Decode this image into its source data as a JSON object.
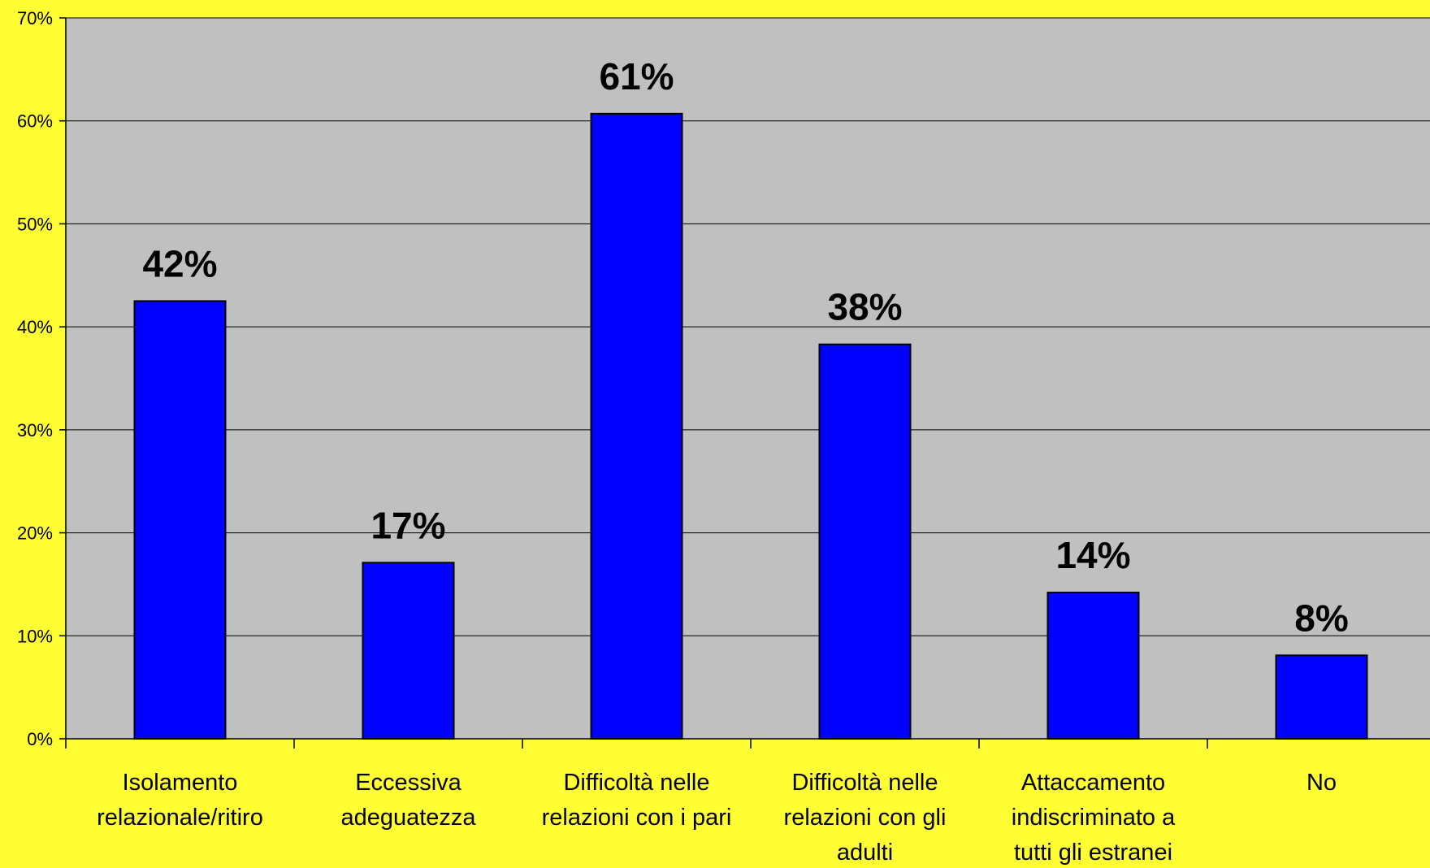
{
  "colors": {
    "page_background": "#ffff33",
    "plot_background": "#c0c0c0",
    "bar_fill": "#0000ff",
    "bar_stroke": "#000000",
    "gridline": "#000000"
  },
  "chart_data": {
    "type": "bar",
    "categories": [
      [
        "Isolamento",
        "relazionale/ritiro"
      ],
      [
        "Eccessiva",
        "adeguatezza"
      ],
      [
        "Difficoltà nelle",
        "relazioni con i pari"
      ],
      [
        "Difficoltà nelle",
        "relazioni con gli",
        "adulti"
      ],
      [
        "Attaccamento",
        "indiscriminato a",
        "tutti gli estranei"
      ],
      [
        "No"
      ]
    ],
    "values": [
      42.5,
      17.1,
      60.7,
      38.3,
      14.2,
      8.1
    ],
    "data_labels": [
      "42%",
      "17%",
      "61%",
      "38%",
      "14%",
      "8%"
    ],
    "y_ticks": [
      0,
      10,
      20,
      30,
      40,
      50,
      60,
      70
    ],
    "y_tick_labels": [
      "0%",
      "10%",
      "20%",
      "30%",
      "40%",
      "50%",
      "60%",
      "70%"
    ],
    "ylim": [
      0,
      70
    ],
    "grid": true,
    "legend": "none",
    "title": "",
    "xlabel": "",
    "ylabel": ""
  }
}
